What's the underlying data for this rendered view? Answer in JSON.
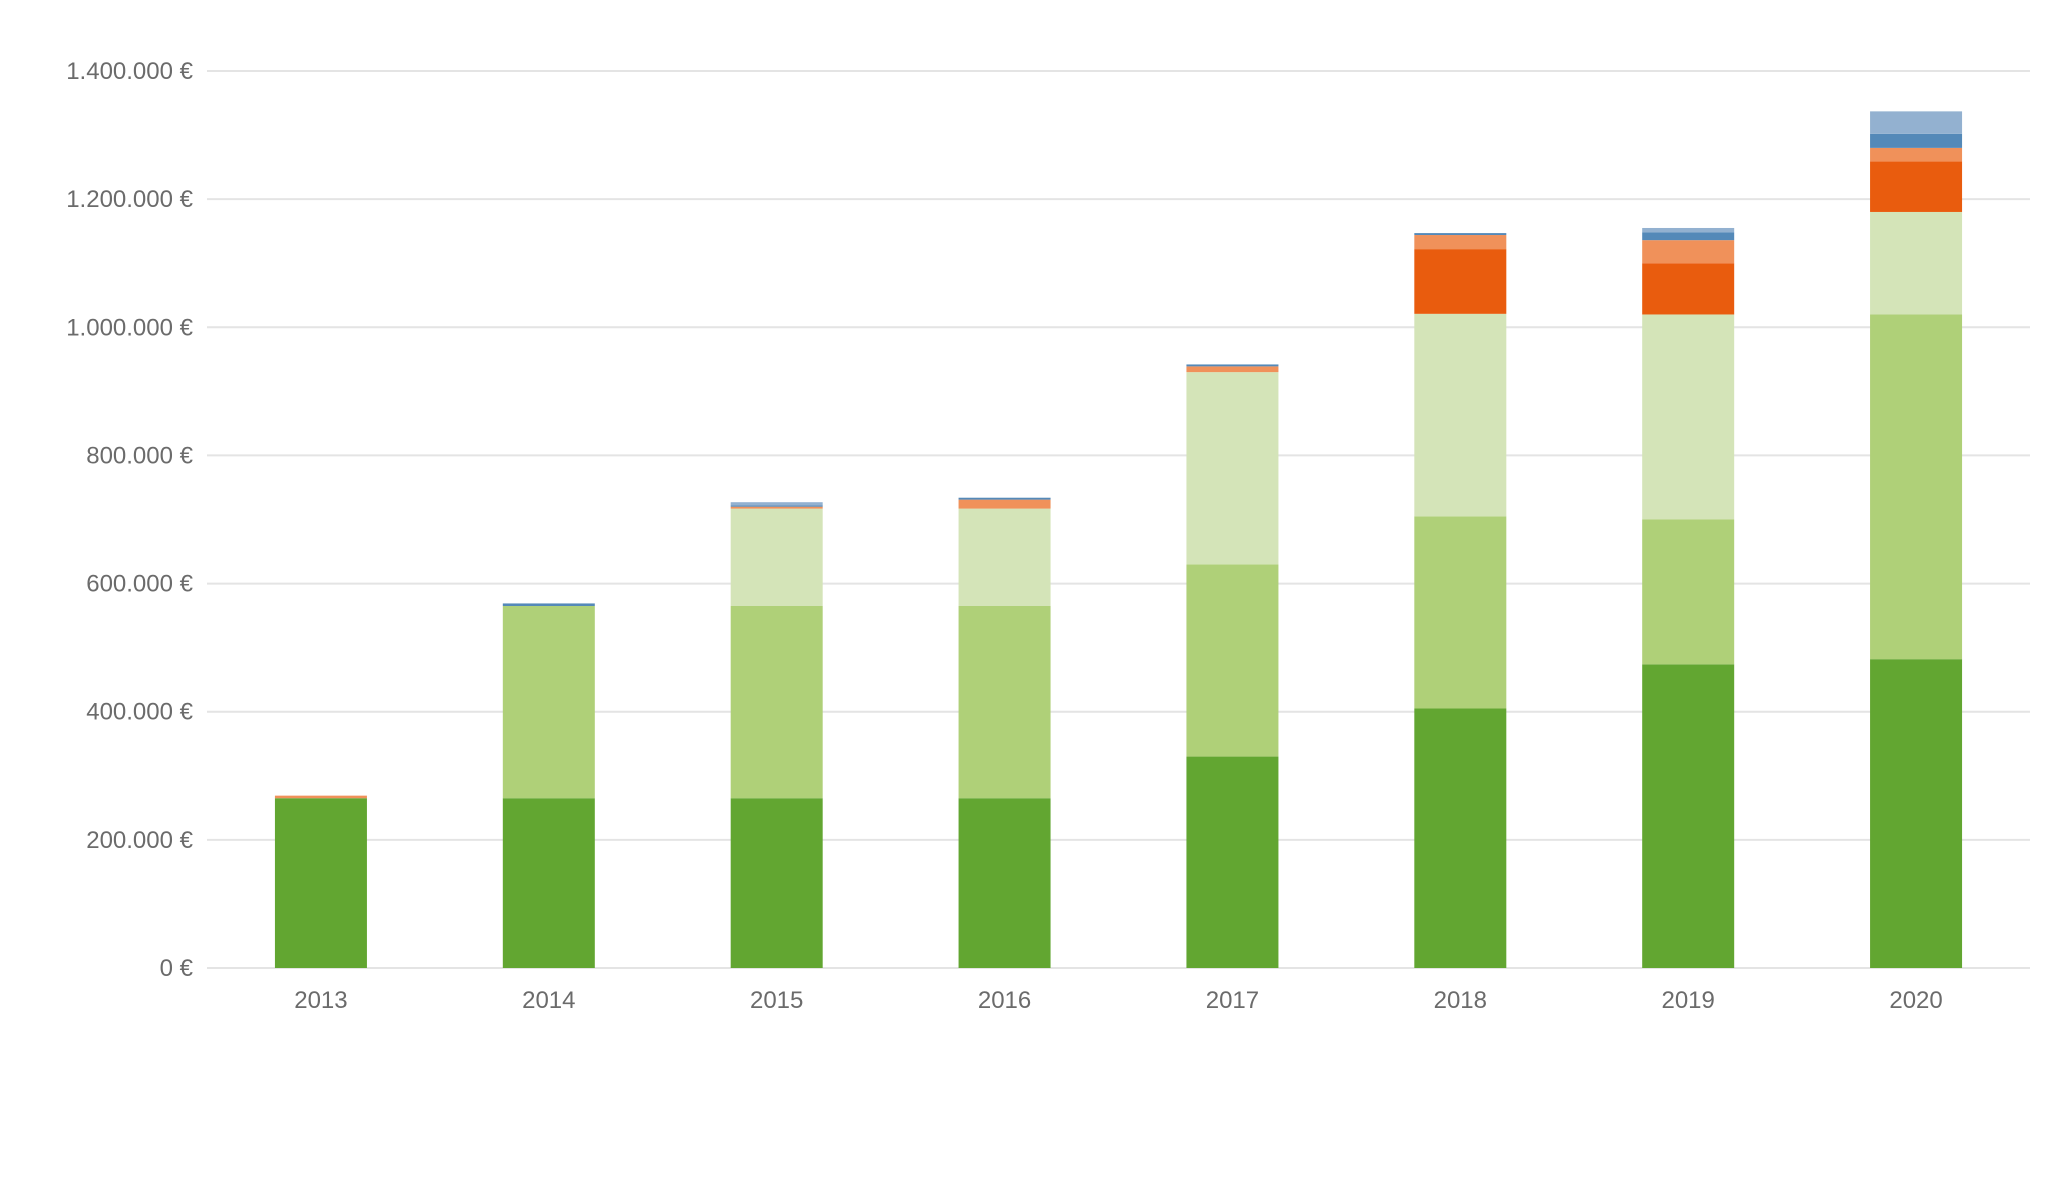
{
  "chart_data": {
    "type": "bar",
    "stacked": true,
    "categories": [
      "2013",
      "2014",
      "2015",
      "2016",
      "2017",
      "2018",
      "2019",
      "2020"
    ],
    "series": [
      {
        "color": "#62a631",
        "values": [
          265000,
          265000,
          265000,
          265000,
          330000,
          405000,
          474000,
          482000
        ]
      },
      {
        "color": "#afd078",
        "values": [
          0,
          300000,
          300000,
          300000,
          300000,
          300000,
          226000,
          538000
        ]
      },
      {
        "color": "#d4e4b8",
        "values": [
          0,
          0,
          152000,
          152000,
          300000,
          316000,
          320000,
          160000
        ]
      },
      {
        "color": "#e95c0e",
        "values": [
          0,
          0,
          0,
          0,
          0,
          101000,
          80000,
          79000
        ]
      },
      {
        "color": "#f0915a",
        "values": [
          4000,
          0,
          3000,
          14000,
          9000,
          22000,
          36000,
          21000
        ]
      },
      {
        "color": "#5489b8",
        "values": [
          0,
          4000,
          2000,
          3000,
          3000,
          3000,
          12000,
          22000
        ]
      },
      {
        "color": "#93b1d0",
        "values": [
          0,
          0,
          5000,
          0,
          0,
          0,
          7000,
          35000
        ]
      }
    ],
    "y_ticks": [
      "0 €",
      "200.000 €",
      "400.000 €",
      "600.000 €",
      "800.000 €",
      "1.000.000 €",
      "1.200.000 €",
      "1.400.000 €"
    ],
    "ylim": [
      0,
      1400000
    ],
    "grid": true,
    "legend": "none"
  }
}
